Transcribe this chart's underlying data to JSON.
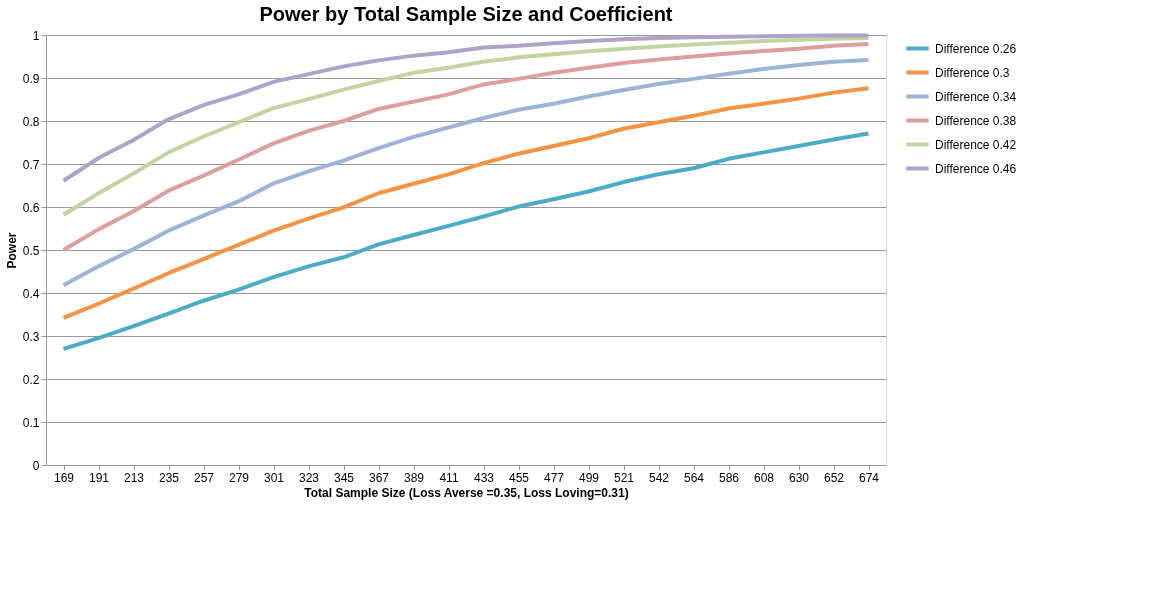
{
  "chart_data": {
    "type": "line",
    "title": "Power by Total Sample Size and Coefficient",
    "xlabel": "Total Sample Size (Loss Averse =0.35, Loss Loving=0.31)",
    "ylabel": "Power",
    "categories": [
      "169",
      "191",
      "213",
      "235",
      "257",
      "279",
      "301",
      "323",
      "345",
      "367",
      "389",
      "411",
      "433",
      "455",
      "477",
      "499",
      "521",
      "542",
      "564",
      "586",
      "608",
      "630",
      "652",
      "674"
    ],
    "ylim": [
      0,
      1
    ],
    "yticks": [
      0,
      0.1,
      0.2,
      0.3,
      0.4,
      0.5,
      0.6,
      0.7,
      0.8,
      0.9,
      1
    ],
    "grid": "y",
    "legend": "right",
    "marker": "none",
    "line_style": "solid",
    "series": [
      {
        "name": "Difference 0.26",
        "color": "#4aacc5",
        "values": [
          0.27,
          0.295,
          0.323,
          0.352,
          0.382,
          0.408,
          0.437,
          0.462,
          0.483,
          0.513,
          0.535,
          0.556,
          0.578,
          0.601,
          0.618,
          0.636,
          0.658,
          0.676,
          0.69,
          0.712,
          0.727,
          0.742,
          0.757,
          0.771
        ]
      },
      {
        "name": "Difference 0.3",
        "color": "#f59342",
        "values": [
          0.342,
          0.375,
          0.41,
          0.446,
          0.479,
          0.512,
          0.545,
          0.573,
          0.599,
          0.632,
          0.654,
          0.676,
          0.702,
          0.724,
          0.742,
          0.76,
          0.782,
          0.797,
          0.812,
          0.829,
          0.84,
          0.852,
          0.866,
          0.876
        ]
      },
      {
        "name": "Difference 0.34",
        "color": "#9db4d9",
        "values": [
          0.418,
          0.462,
          0.502,
          0.545,
          0.58,
          0.613,
          0.655,
          0.683,
          0.708,
          0.737,
          0.763,
          0.785,
          0.807,
          0.826,
          0.84,
          0.857,
          0.872,
          0.886,
          0.898,
          0.91,
          0.921,
          0.93,
          0.938,
          0.942
        ]
      },
      {
        "name": "Difference 0.38",
        "color": "#dc9f9d",
        "values": [
          0.5,
          0.548,
          0.59,
          0.638,
          0.673,
          0.71,
          0.748,
          0.777,
          0.8,
          0.828,
          0.845,
          0.862,
          0.885,
          0.898,
          0.912,
          0.924,
          0.935,
          0.943,
          0.95,
          0.957,
          0.963,
          0.968,
          0.975,
          0.979
        ]
      },
      {
        "name": "Difference 0.42",
        "color": "#c2d5a0",
        "values": [
          0.582,
          0.632,
          0.678,
          0.727,
          0.764,
          0.797,
          0.83,
          0.851,
          0.873,
          0.893,
          0.912,
          0.924,
          0.938,
          0.948,
          0.955,
          0.962,
          0.968,
          0.973,
          0.978,
          0.982,
          0.986,
          0.989,
          0.991,
          0.993
        ]
      },
      {
        "name": "Difference 0.46",
        "color": "#b0a3c8",
        "values": [
          0.661,
          0.714,
          0.756,
          0.804,
          0.837,
          0.862,
          0.891,
          0.909,
          0.927,
          0.941,
          0.952,
          0.96,
          0.971,
          0.975,
          0.981,
          0.986,
          0.99,
          0.993,
          0.995,
          0.996,
          0.997,
          0.998,
          0.999,
          0.999
        ]
      }
    ]
  }
}
